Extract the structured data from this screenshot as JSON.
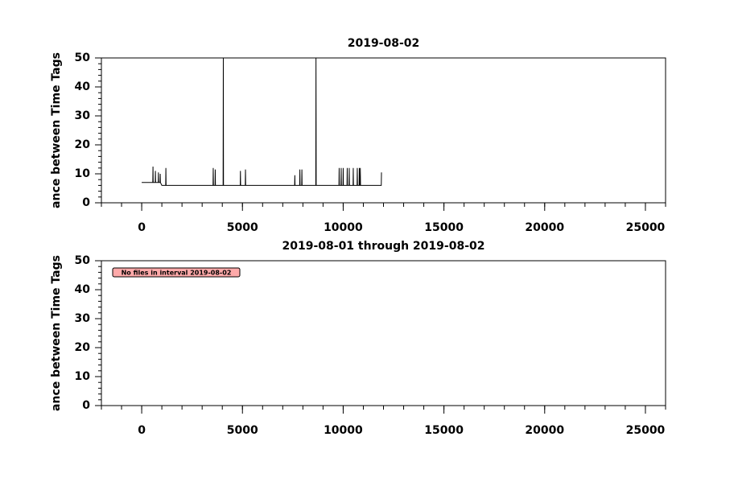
{
  "chart_data": [
    {
      "type": "line",
      "title": "2019-08-02",
      "y_label": "ance between Time Tags",
      "xlim": [
        -2000,
        26000
      ],
      "ylim": [
        0,
        50
      ],
      "xticks": [
        0,
        5000,
        10000,
        15000,
        20000,
        25000
      ],
      "yticks": [
        0,
        10,
        20,
        30,
        40,
        50
      ],
      "x_minor_step": 1000,
      "y_minor_step": 2,
      "series": [
        {
          "color": "#000000",
          "x": [
            0,
            550,
            560,
            570,
            670,
            680,
            690,
            820,
            830,
            840,
            910,
            920,
            930,
            1000,
            1190,
            1200,
            1210,
            3540,
            3550,
            3560,
            3640,
            3650,
            3660,
            4040,
            4050,
            4060,
            4890,
            4900,
            4910,
            5140,
            5150,
            5160,
            7590,
            7600,
            7610,
            7840,
            7850,
            7860,
            7940,
            7950,
            7960,
            8640,
            8650,
            8660,
            9790,
            9800,
            9810,
            9890,
            9900,
            9910,
            9990,
            10000,
            10010,
            10190,
            10200,
            10210,
            10290,
            10300,
            10310,
            10490,
            10500,
            10510,
            10690,
            10700,
            10710,
            10790,
            10800,
            10810,
            10840,
            10850,
            10860,
            11890,
            11900
          ],
          "values": [
            7,
            7,
            12.5,
            7,
            7,
            11,
            7,
            7,
            10.5,
            7,
            7,
            10,
            7,
            6,
            6,
            12,
            6,
            6,
            12,
            6,
            6,
            11.5,
            6,
            6,
            50,
            6,
            6,
            11,
            6,
            6,
            11.5,
            6,
            6,
            9.5,
            6,
            6,
            11.5,
            6,
            6,
            11.5,
            6,
            6,
            50,
            6,
            6,
            12,
            6,
            6,
            12,
            6,
            6,
            12,
            6,
            6,
            12,
            6,
            6,
            12,
            6,
            6,
            12,
            6,
            6,
            12,
            6,
            6,
            12,
            6,
            6,
            12,
            6,
            6,
            10.5
          ]
        }
      ]
    },
    {
      "type": "line",
      "title": "2019-08-01 through 2019-08-02",
      "y_label": "ance between Time Tags",
      "annotation": "No files in interval 2019-08-02",
      "xlim": [
        -2000,
        26000
      ],
      "ylim": [
        0,
        50
      ],
      "xticks": [
        0,
        5000,
        10000,
        15000,
        20000,
        25000
      ],
      "yticks": [
        0,
        10,
        20,
        30,
        40,
        50
      ],
      "x_minor_step": 1000,
      "y_minor_step": 2,
      "series": []
    }
  ]
}
